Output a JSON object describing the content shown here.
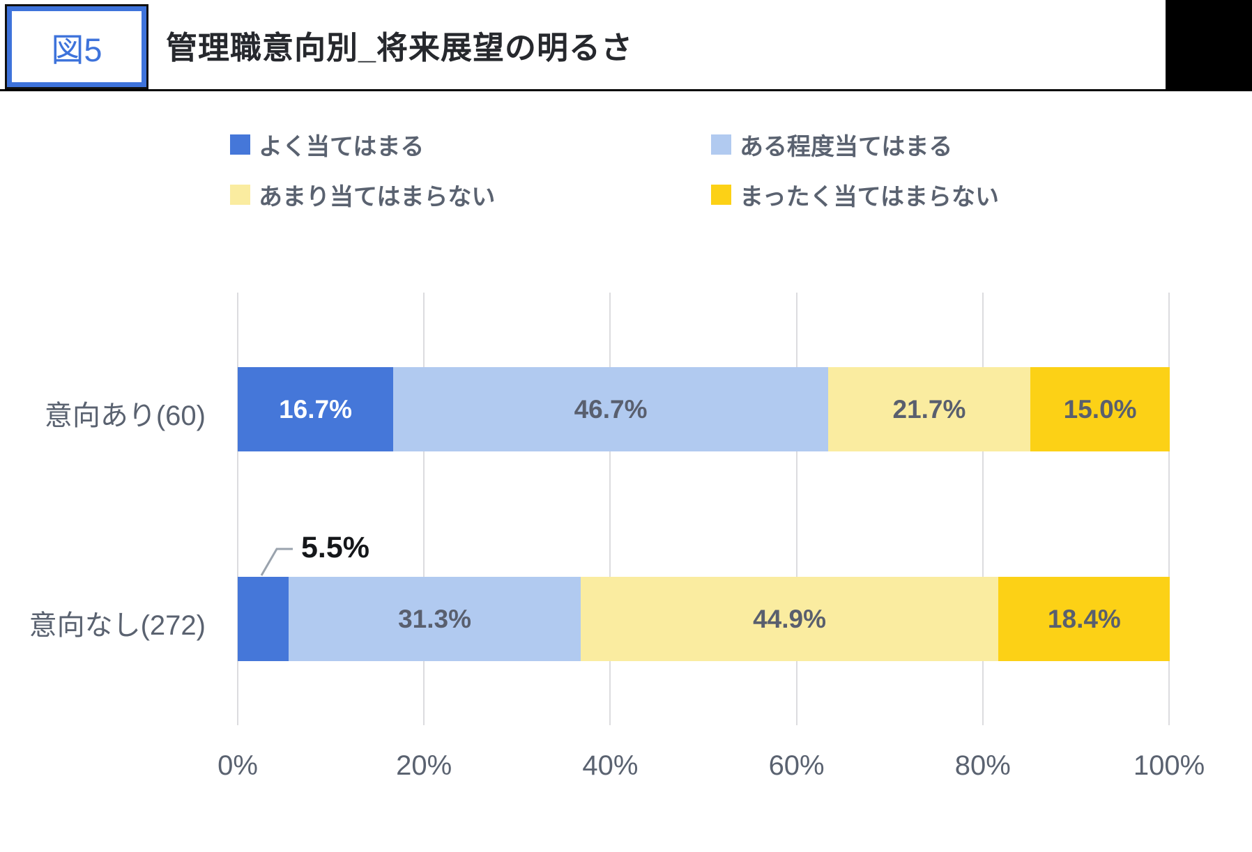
{
  "header": {
    "figure_label": "図5",
    "title": "管理職意向別_将来展望の明るさ"
  },
  "colors": {
    "accent_blue": "#3e73db",
    "series_blue": "#4577d9",
    "series_light_blue": "#b1caf0",
    "series_pale_yellow": "#faeca0",
    "series_yellow": "#fcd116",
    "text_gray": "#5a6270",
    "header_black": "#000000",
    "gridline_gray": "#dcdcdf"
  },
  "legend": {
    "items": [
      {
        "label": "よく当てはまる",
        "color": "#4577d9"
      },
      {
        "label": "ある程度当てはまる",
        "color": "#b1caf0"
      },
      {
        "label": "あまり当てはまらない",
        "color": "#faeca0"
      },
      {
        "label": "まったく当てはまらない",
        "color": "#fcd116"
      }
    ]
  },
  "chart_data": {
    "type": "bar",
    "orientation": "horizontal",
    "stacked": true,
    "title": "管理職意向別_将来展望の明るさ",
    "categories": [
      "意向あり(60)",
      "意向なし(272)"
    ],
    "series": [
      {
        "name": "よく当てはまる",
        "color": "#4577d9",
        "values": [
          16.7,
          5.5
        ]
      },
      {
        "name": "ある程度当てはまる",
        "color": "#b1caf0",
        "values": [
          46.7,
          31.3
        ]
      },
      {
        "name": "あまり当てはまらない",
        "color": "#faeca0",
        "values": [
          21.7,
          44.9
        ]
      },
      {
        "name": "まったく当てはまらない",
        "color": "#fcd116",
        "values": [
          15.0,
          18.4
        ]
      }
    ],
    "value_labels": [
      [
        "16.7%",
        "46.7%",
        "21.7%",
        "15.0%"
      ],
      [
        "5.5%",
        "31.3%",
        "44.9%",
        "18.4%"
      ]
    ],
    "x_ticks": [
      "0%",
      "20%",
      "40%",
      "60%",
      "80%",
      "100%"
    ],
    "xlim": [
      0,
      100
    ],
    "grid": true,
    "legend_position": "top",
    "callout": {
      "label": "5.5%",
      "row": 1,
      "segment": 0
    }
  }
}
